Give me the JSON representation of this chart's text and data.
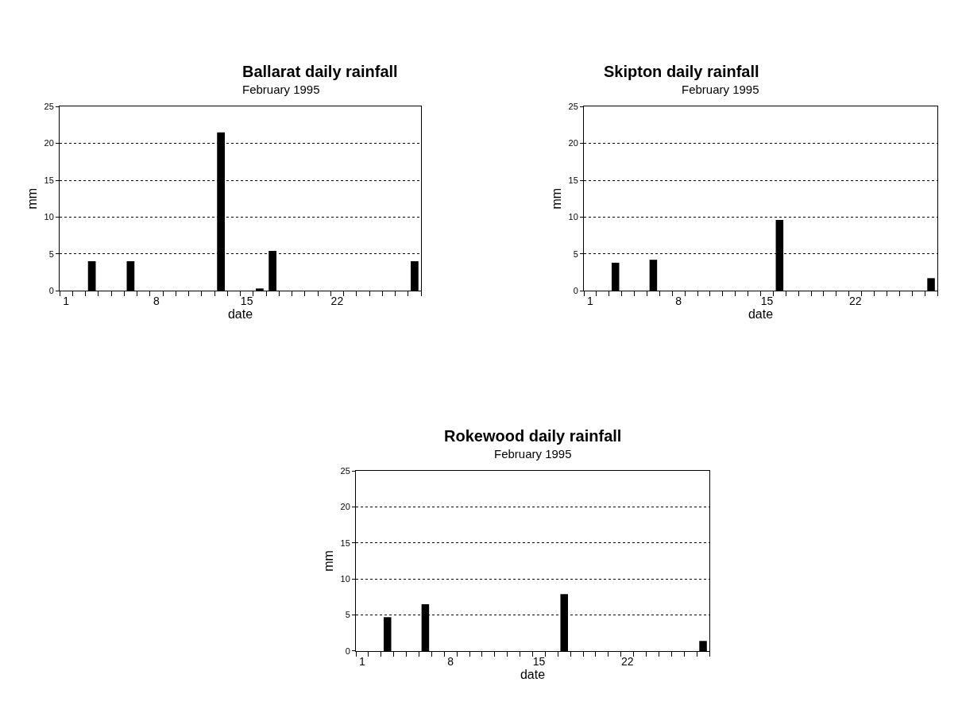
{
  "chart_data": [
    {
      "type": "bar",
      "title": "Ballarat daily rainfall",
      "subtitle": "February 1995",
      "xlabel": "date",
      "ylabel": "mm",
      "categories": [
        "1",
        null,
        null,
        null,
        null,
        null,
        null,
        "8",
        null,
        null,
        null,
        null,
        null,
        null,
        "15",
        null,
        null,
        null,
        null,
        null,
        null,
        "22",
        null,
        null,
        null,
        null,
        null,
        null
      ],
      "values": [
        0,
        0,
        4,
        0,
        0,
        4,
        0,
        0,
        0,
        0,
        0,
        0,
        21.5,
        0,
        0,
        0.3,
        5.4,
        0,
        0,
        0,
        0,
        0,
        0,
        0,
        0,
        0,
        0,
        4
      ],
      "color": "#000000",
      "ylim": [
        0,
        25
      ],
      "yticks": [
        0,
        5,
        10,
        15,
        20,
        25
      ],
      "grid": "y"
    },
    {
      "type": "bar",
      "title": "Skipton daily rainfall",
      "subtitle": "February 1995",
      "xlabel": "date",
      "ylabel": "mm",
      "categories": [
        "1",
        null,
        null,
        null,
        null,
        null,
        null,
        "8",
        null,
        null,
        null,
        null,
        null,
        null,
        "15",
        null,
        null,
        null,
        null,
        null,
        null,
        "22",
        null,
        null,
        null,
        null,
        null,
        null
      ],
      "values": [
        0,
        0,
        3.8,
        0,
        0,
        4.2,
        0,
        0,
        0,
        0,
        0,
        0,
        0,
        0,
        0,
        9.6,
        0,
        0,
        0,
        0,
        0,
        0,
        0,
        0,
        0,
        0,
        0,
        1.7
      ],
      "color": "#000000",
      "ylim": [
        0,
        25
      ],
      "yticks": [
        0,
        5,
        10,
        15,
        20,
        25
      ],
      "grid": "y"
    },
    {
      "type": "bar",
      "title": "Rokewood daily rainfall",
      "subtitle": "February 1995",
      "xlabel": "date",
      "ylabel": "mm",
      "categories": [
        "1",
        null,
        null,
        null,
        null,
        null,
        null,
        "8",
        null,
        null,
        null,
        null,
        null,
        null,
        "15",
        null,
        null,
        null,
        null,
        null,
        null,
        "22",
        null,
        null,
        null,
        null,
        null,
        null
      ],
      "values": [
        0,
        0,
        4.7,
        0,
        0,
        6.5,
        0,
        0,
        0,
        0,
        0,
        0,
        0,
        0,
        0,
        0,
        7.9,
        0,
        0,
        0,
        0,
        0,
        0,
        0,
        0,
        0,
        0,
        1.4
      ],
      "color": "#000000",
      "ylim": [
        0,
        25
      ],
      "yticks": [
        0,
        5,
        10,
        15,
        20,
        25
      ],
      "grid": "y"
    }
  ]
}
